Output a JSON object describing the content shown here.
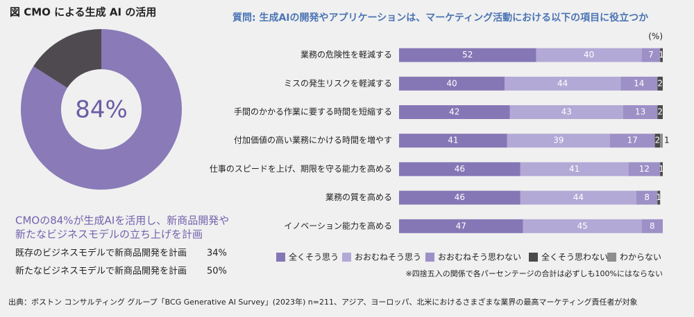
{
  "title": "図 CMO による生成 AI の活用",
  "chart_data": [
    {
      "type": "donut",
      "values": [
        84,
        16
      ],
      "value_labels": [
        "84%",
        null
      ],
      "colors": [
        "#8a7bb8",
        "#4e4a50"
      ]
    },
    {
      "type": "stacked-bar-horizontal",
      "title": "質問: 生成AIの開発やアプリケーションは、マーケティング活動における以下の項目に役立つか",
      "unit": "(%)",
      "categories": [
        "業務の危険性を軽減する",
        "ミスの発生リスクを軽減する",
        "手間のかかる作業に要する時間を短縮する",
        "付加価値の高い業務にかける時間を増やす",
        "仕事のスピードを上げ、期限を守る能力を高める",
        "業務の質を高める",
        "イノベーション能力を高める"
      ],
      "series": [
        {
          "name": "全くそう思う",
          "color": "#8577b5",
          "values": [
            52,
            40,
            42,
            41,
            46,
            46,
            47
          ]
        },
        {
          "name": "おおむねそう思う",
          "color": "#b3a9d6",
          "values": [
            40,
            44,
            43,
            39,
            41,
            44,
            45
          ]
        },
        {
          "name": "おおむねそう思わない",
          "color": "#9d90c6",
          "values": [
            7,
            14,
            13,
            17,
            12,
            8,
            8
          ]
        },
        {
          "name": "全くそう思わない",
          "color": "#4a4a4a",
          "values": [
            1,
            2,
            2,
            2,
            1,
            1,
            0
          ]
        },
        {
          "name": "わからない",
          "color": "#8e8e8e",
          "values": [
            0,
            0,
            0,
            1,
            0,
            0,
            0
          ]
        }
      ],
      "xlim": [
        0,
        100
      ],
      "legend": "bottom",
      "note": "※四捨五入の関係で各パーセンテージの合計は必ずしも100%にはならない"
    }
  ],
  "summary": [
    "CMOの84%が生成AIを活用し、新商品開発や",
    "新たなビジネスモデルの立ち上げを計画"
  ],
  "stats": [
    [
      "既存のビジネスモデルで新商品開発を計画",
      "34%"
    ],
    [
      "新たなビジネスモデルで新商品開発を計画",
      "50%"
    ]
  ],
  "source": "出典：ボストン コンサルティング グループ「BCG Generative AI Survey」(2023年) n=211、アジア、ヨーロッパ、北米におけるさまざまな業界の最高マーケティング責任者が対象"
}
